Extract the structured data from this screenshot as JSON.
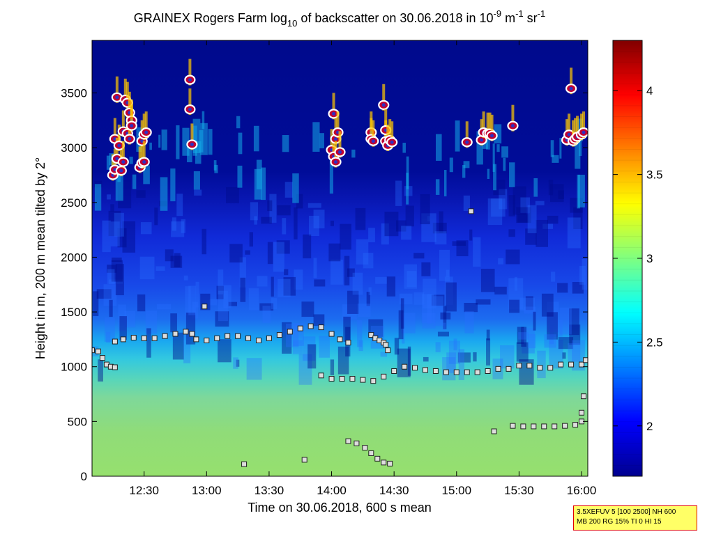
{
  "chart_data": {
    "type": "heatmap",
    "title": {
      "prefix": "GRAINEX Rogers Farm log",
      "prefix_sub": "10",
      "middle": " of backscatter on 30.06.2018 in 10",
      "sup1": "-9",
      "unit1": " m",
      "sup2": "-1",
      "unit2": " sr",
      "sup3": "-1"
    },
    "xlabel": "Time on 30.06.2018, 600 s mean",
    "ylabel": "Height in m, 200 m mean tilted by 2°",
    "x_ticks": [
      "12:30",
      "13:00",
      "13:30",
      "14:00",
      "14:30",
      "15:00",
      "15:30",
      "16:00"
    ],
    "y_ticks": [
      "0",
      "500",
      "1000",
      "1500",
      "2000",
      "2500",
      "3000",
      "3500"
    ],
    "xlim": [
      "12:05",
      "16:03"
    ],
    "ylim": [
      0,
      3980
    ],
    "colorbar": {
      "ticks": [
        "2",
        "2.5",
        "3",
        "3.5",
        "4"
      ],
      "range": [
        1.7,
        4.3
      ]
    },
    "cloud_base_points": [
      {
        "t": "12:15",
        "h": 2750
      },
      {
        "t": "12:16",
        "h": 2800
      },
      {
        "t": "12:16",
        "h": 3080
      },
      {
        "t": "12:17",
        "h": 3460
      },
      {
        "t": "12:17",
        "h": 2900
      },
      {
        "t": "12:18",
        "h": 3020
      },
      {
        "t": "12:19",
        "h": 2790
      },
      {
        "t": "12:20",
        "h": 2870
      },
      {
        "t": "12:20",
        "h": 3150
      },
      {
        "t": "12:21",
        "h": 3440
      },
      {
        "t": "12:22",
        "h": 3410
      },
      {
        "t": "12:22",
        "h": 3130
      },
      {
        "t": "12:23",
        "h": 3080
      },
      {
        "t": "12:23",
        "h": 3320
      },
      {
        "t": "12:24",
        "h": 3250
      },
      {
        "t": "12:24",
        "h": 3200
      },
      {
        "t": "12:28",
        "h": 2820
      },
      {
        "t": "12:29",
        "h": 2860
      },
      {
        "t": "12:29",
        "h": 3060
      },
      {
        "t": "12:30",
        "h": 3120
      },
      {
        "t": "12:30",
        "h": 2870
      },
      {
        "t": "12:31",
        "h": 3140
      },
      {
        "t": "12:52",
        "h": 3620
      },
      {
        "t": "12:52",
        "h": 3350
      },
      {
        "t": "12:53",
        "h": 3030
      },
      {
        "t": "14:00",
        "h": 2980
      },
      {
        "t": "14:01",
        "h": 3310
      },
      {
        "t": "14:01",
        "h": 2920
      },
      {
        "t": "14:02",
        "h": 3080
      },
      {
        "t": "14:02",
        "h": 2870
      },
      {
        "t": "14:03",
        "h": 3140
      },
      {
        "t": "14:04",
        "h": 2960
      },
      {
        "t": "14:19",
        "h": 3140
      },
      {
        "t": "14:19",
        "h": 3080
      },
      {
        "t": "14:20",
        "h": 3060
      },
      {
        "t": "14:25",
        "h": 3390
      },
      {
        "t": "14:26",
        "h": 3060
      },
      {
        "t": "14:26",
        "h": 3160
      },
      {
        "t": "14:27",
        "h": 3020
      },
      {
        "t": "14:28",
        "h": 3070
      },
      {
        "t": "14:29",
        "h": 3050
      },
      {
        "t": "15:05",
        "h": 3050
      },
      {
        "t": "15:12",
        "h": 3070
      },
      {
        "t": "15:13",
        "h": 3140
      },
      {
        "t": "15:15",
        "h": 3130
      },
      {
        "t": "15:16",
        "h": 3130
      },
      {
        "t": "15:17",
        "h": 3110
      },
      {
        "t": "15:27",
        "h": 3200
      },
      {
        "t": "15:53",
        "h": 3070
      },
      {
        "t": "15:54",
        "h": 3120
      },
      {
        "t": "15:55",
        "h": 3540
      },
      {
        "t": "15:56",
        "h": 3060
      },
      {
        "t": "15:57",
        "h": 3080
      },
      {
        "t": "15:58",
        "h": 3100
      },
      {
        "t": "16:00",
        "h": 3120
      },
      {
        "t": "16:01",
        "h": 3140
      }
    ],
    "aerosol_layer_tops": [
      {
        "t": "12:05",
        "h": 1150
      },
      {
        "t": "12:08",
        "h": 1140
      },
      {
        "t": "12:10",
        "h": 1080
      },
      {
        "t": "12:12",
        "h": 1020
      },
      {
        "t": "12:14",
        "h": 1000
      },
      {
        "t": "12:16",
        "h": 995
      },
      {
        "t": "12:16",
        "h": 1230
      },
      {
        "t": "12:20",
        "h": 1250
      },
      {
        "t": "12:25",
        "h": 1265
      },
      {
        "t": "12:30",
        "h": 1260
      },
      {
        "t": "12:35",
        "h": 1260
      },
      {
        "t": "12:40",
        "h": 1280
      },
      {
        "t": "12:45",
        "h": 1300
      },
      {
        "t": "12:50",
        "h": 1320
      },
      {
        "t": "12:53",
        "h": 1300
      },
      {
        "t": "12:55",
        "h": 1250
      },
      {
        "t": "13:00",
        "h": 1240
      },
      {
        "t": "13:05",
        "h": 1260
      },
      {
        "t": "13:10",
        "h": 1280
      },
      {
        "t": "13:15",
        "h": 1280
      },
      {
        "t": "13:20",
        "h": 1260
      },
      {
        "t": "13:25",
        "h": 1240
      },
      {
        "t": "13:30",
        "h": 1260
      },
      {
        "t": "13:35",
        "h": 1290
      },
      {
        "t": "13:40",
        "h": 1320
      },
      {
        "t": "13:45",
        "h": 1350
      },
      {
        "t": "13:50",
        "h": 1370
      },
      {
        "t": "13:55",
        "h": 1360
      },
      {
        "t": "14:00",
        "h": 1300
      },
      {
        "t": "14:04",
        "h": 1250
      },
      {
        "t": "14:08",
        "h": 1220
      },
      {
        "t": "14:19",
        "h": 1290
      },
      {
        "t": "14:21",
        "h": 1260
      },
      {
        "t": "14:23",
        "h": 1240
      },
      {
        "t": "14:25",
        "h": 1220
      },
      {
        "t": "14:26",
        "h": 1200
      },
      {
        "t": "14:27",
        "h": 1150
      },
      {
        "t": "13:55",
        "h": 920
      },
      {
        "t": "14:00",
        "h": 890
      },
      {
        "t": "14:05",
        "h": 890
      },
      {
        "t": "14:10",
        "h": 890
      },
      {
        "t": "14:15",
        "h": 880
      },
      {
        "t": "14:20",
        "h": 870
      },
      {
        "t": "14:25",
        "h": 910
      },
      {
        "t": "14:30",
        "h": 960
      },
      {
        "t": "14:35",
        "h": 1000
      },
      {
        "t": "14:40",
        "h": 990
      },
      {
        "t": "14:45",
        "h": 970
      },
      {
        "t": "14:50",
        "h": 960
      },
      {
        "t": "14:55",
        "h": 950
      },
      {
        "t": "15:00",
        "h": 950
      },
      {
        "t": "15:05",
        "h": 950
      },
      {
        "t": "15:10",
        "h": 950
      },
      {
        "t": "15:15",
        "h": 960
      },
      {
        "t": "15:20",
        "h": 980
      },
      {
        "t": "15:25",
        "h": 980
      },
      {
        "t": "15:30",
        "h": 1010
      },
      {
        "t": "15:35",
        "h": 1010
      },
      {
        "t": "15:40",
        "h": 990
      },
      {
        "t": "15:45",
        "h": 990
      },
      {
        "t": "15:50",
        "h": 1020
      },
      {
        "t": "15:55",
        "h": 1020
      },
      {
        "t": "16:00",
        "h": 1020
      },
      {
        "t": "16:02",
        "h": 1060
      },
      {
        "t": "15:27",
        "h": 460
      },
      {
        "t": "15:32",
        "h": 455
      },
      {
        "t": "15:37",
        "h": 455
      },
      {
        "t": "15:42",
        "h": 455
      },
      {
        "t": "15:47",
        "h": 455
      },
      {
        "t": "15:52",
        "h": 460
      },
      {
        "t": "15:57",
        "h": 470
      },
      {
        "t": "16:00",
        "h": 500
      },
      {
        "t": "16:00",
        "h": 580
      },
      {
        "t": "16:01",
        "h": 730
      },
      {
        "t": "15:18",
        "h": 410
      },
      {
        "t": "14:08",
        "h": 320
      },
      {
        "t": "14:12",
        "h": 300
      },
      {
        "t": "14:16",
        "h": 260
      },
      {
        "t": "14:19",
        "h": 210
      },
      {
        "t": "14:22",
        "h": 160
      },
      {
        "t": "14:25",
        "h": 125
      },
      {
        "t": "14:28",
        "h": 115
      },
      {
        "t": "13:18",
        "h": 110
      },
      {
        "t": "13:47",
        "h": 150
      },
      {
        "t": "12:59",
        "h": 1550
      },
      {
        "t": "15:07",
        "h": 2420
      }
    ]
  },
  "infobox": {
    "line1": "3.5XEFUV 5 [100 2500] NH 600",
    "line2": "MB 200 RG 15% TI 0 HI 15"
  }
}
